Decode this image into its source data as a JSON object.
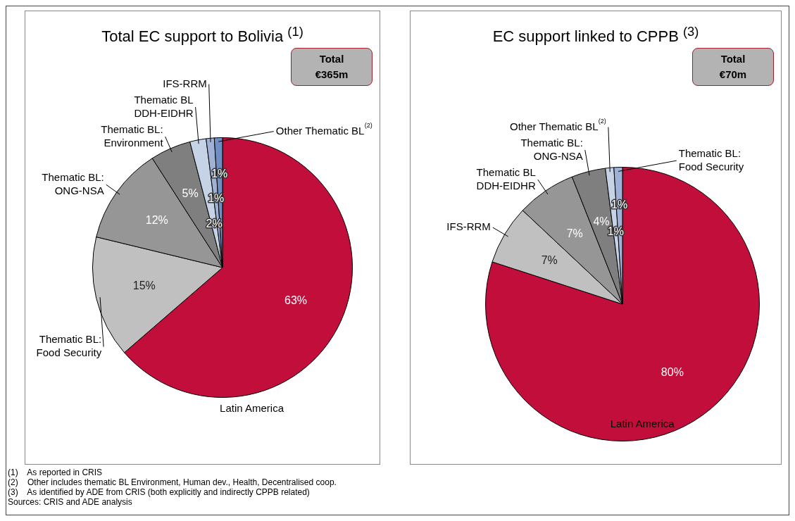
{
  "chart_data": [
    {
      "type": "pie",
      "title": "Total EC support to Bolivia $^{(1)}$",
      "categories": [
        "Latin America",
        "Thematic BL:\nFood Security",
        "Thematic BL:\nONG-NSA",
        "Thematic BL:\nEnvironment",
        "Thematic BL\nDDH-EIDHR",
        "IFS-RRM",
        "Other Thematic BL$^{(2)}$"
      ],
      "values": [
        63,
        15,
        12,
        5,
        2,
        1,
        1
      ],
      "value_labels": [
        "63%",
        "15%",
        "12%",
        "5%",
        "2%",
        "1%",
        "1%"
      ],
      "colors": [
        "#c20e3b",
        "#c0c0c0",
        "#969696",
        "#7f7f7f",
        "#c6d3e6",
        "#9fb2d6",
        "#6f8ec2"
      ],
      "legend": false,
      "annotations": [
        "Total\n€365m"
      ]
    },
    {
      "type": "pie",
      "title": "EC support linked to CPPB $^{(3)}$",
      "categories": [
        "Latin America",
        "IFS-RRM",
        "Thematic BL\nDDH-EIDHR",
        "Thematic BL:\nONG-NSA",
        "Other Thematic BL$^{(2)}$",
        "Thematic BL:\nFood Security"
      ],
      "values": [
        80,
        7,
        7,
        4,
        1,
        1
      ],
      "value_labels": [
        "80%",
        "7%",
        "7%",
        "4%",
        "1%",
        "1%"
      ],
      "colors": [
        "#c20e3b",
        "#c0c0c0",
        "#969696",
        "#7f7f7f",
        "#c6d3e6",
        "#9fb2d6"
      ],
      "legend": false,
      "annotations": [
        "Total\n€70m",
        "(1)    As reported in CRIS",
        "(2)    Other includes thematic BL Environment, Human dev., Health, Decentralised coop.",
        "(3)    As identified by ADE from CRIS (both explicitly and indirectly CPPB related)",
        "Sources: CRIS and ADE analysis"
      ]
    }
  ]
}
